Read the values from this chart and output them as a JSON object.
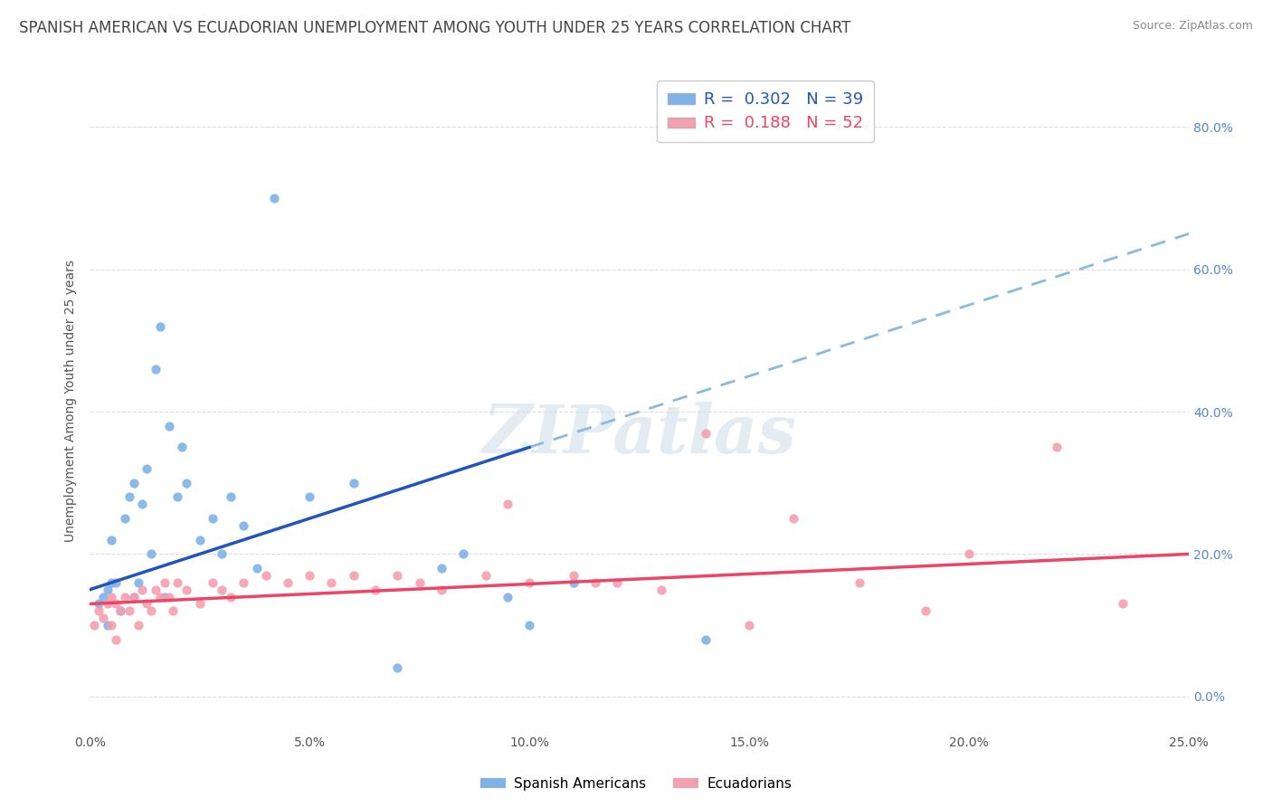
{
  "title": "SPANISH AMERICAN VS ECUADORIAN UNEMPLOYMENT AMONG YOUTH UNDER 25 YEARS CORRELATION CHART",
  "source": "Source: ZipAtlas.com",
  "ylabel": "Unemployment Among Youth under 25 years",
  "xlim": [
    0.0,
    0.25
  ],
  "ylim": [
    -0.05,
    0.88
  ],
  "xticks": [
    0.0,
    0.05,
    0.1,
    0.15,
    0.2,
    0.25
  ],
  "yticks": [
    0.0,
    0.2,
    0.4,
    0.6,
    0.8
  ],
  "xtick_labels": [
    "0.0%",
    "5.0%",
    "10.0%",
    "15.0%",
    "20.0%",
    "25.0%"
  ],
  "ytick_labels": [
    "0.0%",
    "20.0%",
    "40.0%",
    "60.0%",
    "80.0%"
  ],
  "blue_color": "#7EB3E8",
  "pink_color": "#F4A0B0",
  "blue_line_color": "#2255BB",
  "pink_line_color": "#EE4466",
  "dashed_line_color": "#88BBDD",
  "legend_R1": "0.302",
  "legend_N1": "39",
  "legend_R2": "0.188",
  "legend_N2": "52",
  "legend_label1": "Spanish Americans",
  "legend_label2": "Ecuadorians",
  "blue_scatter_x": [
    0.002,
    0.003,
    0.004,
    0.004,
    0.005,
    0.005,
    0.006,
    0.007,
    0.008,
    0.009,
    0.01,
    0.01,
    0.011,
    0.012,
    0.013,
    0.014,
    0.015,
    0.016,
    0.017,
    0.018,
    0.02,
    0.021,
    0.022,
    0.025,
    0.028,
    0.03,
    0.032,
    0.035,
    0.038,
    0.042,
    0.05,
    0.06,
    0.07,
    0.08,
    0.085,
    0.095,
    0.1,
    0.11,
    0.14
  ],
  "blue_scatter_y": [
    0.13,
    0.14,
    0.1,
    0.15,
    0.16,
    0.22,
    0.16,
    0.12,
    0.25,
    0.28,
    0.14,
    0.3,
    0.16,
    0.27,
    0.32,
    0.2,
    0.46,
    0.52,
    0.14,
    0.38,
    0.28,
    0.35,
    0.3,
    0.22,
    0.25,
    0.2,
    0.28,
    0.24,
    0.18,
    0.7,
    0.28,
    0.3,
    0.04,
    0.18,
    0.2,
    0.14,
    0.1,
    0.16,
    0.08
  ],
  "pink_scatter_x": [
    0.001,
    0.002,
    0.003,
    0.004,
    0.005,
    0.005,
    0.006,
    0.006,
    0.007,
    0.008,
    0.009,
    0.01,
    0.011,
    0.012,
    0.013,
    0.014,
    0.015,
    0.016,
    0.017,
    0.018,
    0.019,
    0.02,
    0.022,
    0.025,
    0.028,
    0.03,
    0.032,
    0.035,
    0.04,
    0.045,
    0.05,
    0.055,
    0.06,
    0.065,
    0.07,
    0.075,
    0.08,
    0.09,
    0.095,
    0.1,
    0.11,
    0.115,
    0.12,
    0.13,
    0.14,
    0.15,
    0.16,
    0.175,
    0.19,
    0.2,
    0.22,
    0.235
  ],
  "pink_scatter_y": [
    0.1,
    0.12,
    0.11,
    0.13,
    0.14,
    0.1,
    0.13,
    0.08,
    0.12,
    0.14,
    0.12,
    0.14,
    0.1,
    0.15,
    0.13,
    0.12,
    0.15,
    0.14,
    0.16,
    0.14,
    0.12,
    0.16,
    0.15,
    0.13,
    0.16,
    0.15,
    0.14,
    0.16,
    0.17,
    0.16,
    0.17,
    0.16,
    0.17,
    0.15,
    0.17,
    0.16,
    0.15,
    0.17,
    0.27,
    0.16,
    0.17,
    0.16,
    0.16,
    0.15,
    0.37,
    0.1,
    0.25,
    0.16,
    0.12,
    0.2,
    0.35,
    0.13
  ],
  "title_fontsize": 12,
  "axis_label_fontsize": 10,
  "tick_fontsize": 10,
  "legend_fontsize": 12
}
